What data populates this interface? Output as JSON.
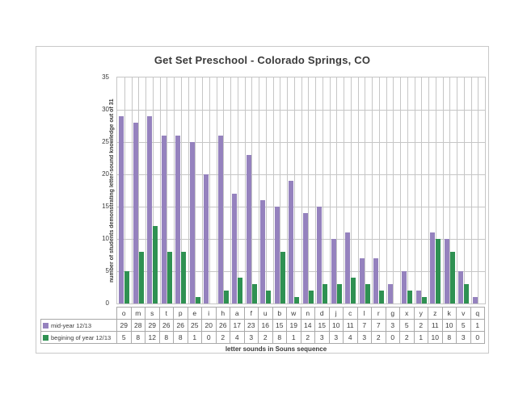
{
  "chart_data": {
    "type": "bar",
    "title": "Get Set Preschool - Colorado Springs, CO",
    "xlabel": "letter sounds in Souns sequence",
    "ylabel": "number of students demonstrating letter-sound knowledge out of 31",
    "categories": [
      "o",
      "m",
      "s",
      "t",
      "p",
      "e",
      "i",
      "h",
      "a",
      "f",
      "u",
      "b",
      "w",
      "n",
      "d",
      "j",
      "c",
      "l",
      "r",
      "g",
      "x",
      "y",
      "z",
      "k",
      "v",
      "q"
    ],
    "series": [
      {
        "name": "mid-year 12/13",
        "color": "#9582BE",
        "values": [
          29,
          28,
          29,
          26,
          26,
          25,
          20,
          26,
          17,
          23,
          16,
          15,
          19,
          14,
          15,
          10,
          11,
          7,
          7,
          3,
          5,
          2,
          11,
          10,
          5,
          1
        ]
      },
      {
        "name": "begining of year 12/13",
        "color": "#2F9152",
        "values": [
          5,
          8,
          12,
          8,
          8,
          1,
          0,
          2,
          4,
          3,
          2,
          8,
          1,
          2,
          3,
          3,
          4,
          3,
          2,
          0,
          2,
          1,
          10,
          8,
          3,
          0
        ]
      }
    ],
    "ylim": [
      0,
      35
    ],
    "ytick_step": 5,
    "yticks": [
      35,
      30,
      25,
      20,
      15,
      10,
      5,
      0
    ],
    "grid": "horizontal major every 5; vertical lines at category boundaries and midpoints",
    "legend_position": "attached to data table rows, left side",
    "data_table_shown": true
  },
  "colors": {
    "bar_mid_year": "#9582BE",
    "bar_beginning": "#2F9152",
    "gridline": "#C6C6C6",
    "table_border": "#A9A9A9",
    "chart_border": "#C9C9C9",
    "text": "#3B3B3B"
  }
}
